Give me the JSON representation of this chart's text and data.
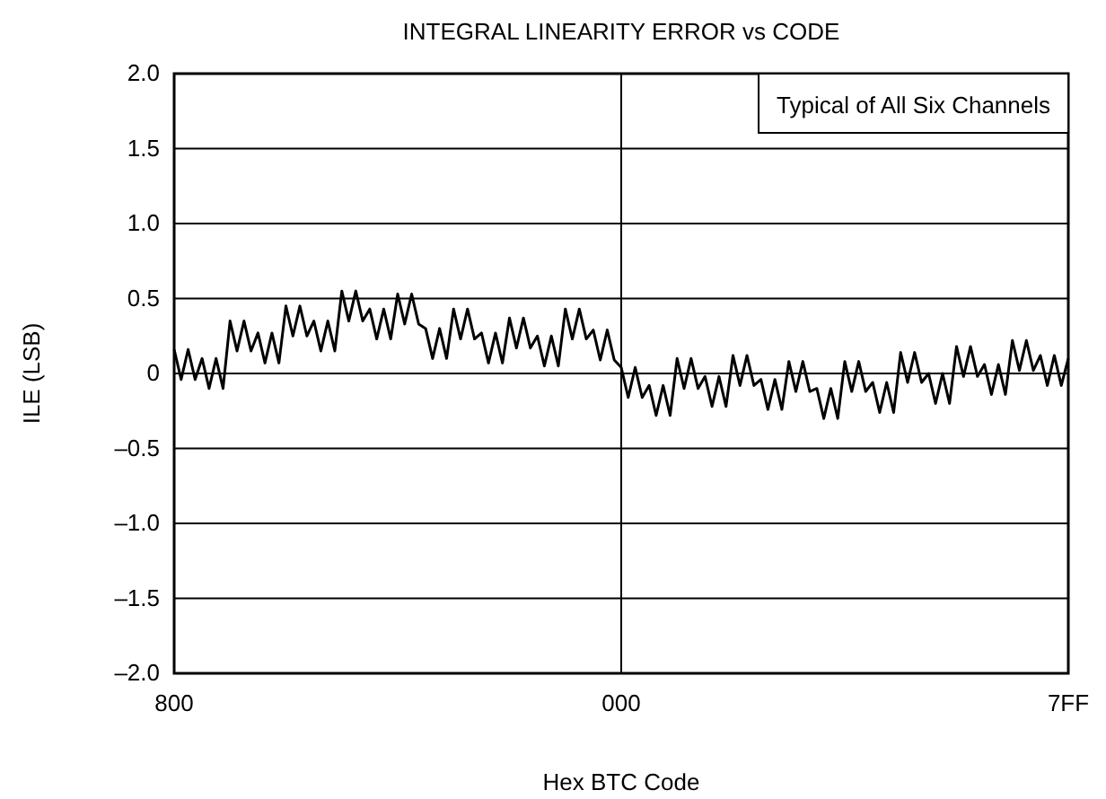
{
  "chart_data": {
    "type": "line",
    "title": "INTEGRAL LINEARITY ERROR vs CODE",
    "xlabel": "Hex BTC Code",
    "ylabel": "ILE (LSB)",
    "annotations": [
      "Typical of All Six Channels"
    ],
    "categories": [
      "800",
      null,
      null,
      null,
      null,
      null,
      null,
      null,
      null,
      null,
      null,
      null,
      null,
      null,
      null,
      null,
      null,
      null,
      null,
      null,
      null,
      null,
      null,
      null,
      null,
      null,
      null,
      null,
      null,
      null,
      null,
      null,
      null,
      null,
      null,
      null,
      null,
      null,
      null,
      null,
      null,
      null,
      null,
      null,
      null,
      null,
      null,
      null,
      null,
      null,
      null,
      null,
      null,
      null,
      null,
      null,
      null,
      null,
      null,
      null,
      null,
      null,
      null,
      null,
      "000",
      null,
      null,
      null,
      null,
      null,
      null,
      null,
      null,
      null,
      null,
      null,
      null,
      null,
      null,
      null,
      null,
      null,
      null,
      null,
      null,
      null,
      null,
      null,
      null,
      null,
      null,
      null,
      null,
      null,
      null,
      null,
      null,
      null,
      null,
      null,
      null,
      null,
      null,
      null,
      null,
      null,
      null,
      null,
      null,
      null,
      null,
      null,
      null,
      null,
      null,
      null,
      null,
      null,
      null,
      null,
      null,
      null,
      null,
      null,
      null,
      null,
      null,
      null,
      "7FF"
    ],
    "ylim": [
      -2,
      2
    ],
    "yticks": [
      {
        "value": -2,
        "label": "–2.0"
      },
      {
        "value": -1.5,
        "label": "–1.5"
      },
      {
        "value": -1,
        "label": "–1.0"
      },
      {
        "value": -0.5,
        "label": "–0.5"
      },
      0,
      0.5,
      {
        "value": 1,
        "label": "1.0"
      },
      1.5,
      {
        "value": 2,
        "label": "2.0"
      }
    ],
    "grid": true,
    "line_style": "solid",
    "marker": "none",
    "series": [
      {
        "color": "#000000",
        "values": [
          0.16,
          -0.04,
          0.16,
          -0.04,
          0.1,
          -0.1,
          0.1,
          -0.1,
          0.35,
          0.15,
          0.35,
          0.15,
          0.27,
          0.07,
          0.27,
          0.07,
          0.45,
          0.25,
          0.45,
          0.25,
          0.35,
          0.15,
          0.35,
          0.15,
          0.55,
          0.35,
          0.55,
          0.35,
          0.43,
          0.23,
          0.43,
          0.23,
          0.53,
          0.33,
          0.53,
          0.33,
          0.3,
          0.1,
          0.3,
          0.1,
          0.43,
          0.23,
          0.43,
          0.23,
          0.27,
          0.07,
          0.27,
          0.07,
          0.37,
          0.17,
          0.37,
          0.17,
          0.25,
          0.05,
          0.25,
          0.05,
          0.43,
          0.23,
          0.43,
          0.23,
          0.29,
          0.09,
          0.29,
          0.09,
          0.04,
          -0.16,
          0.04,
          -0.16,
          -0.08,
          -0.28,
          -0.08,
          -0.28,
          0.1,
          -0.1,
          0.1,
          -0.1,
          -0.02,
          -0.22,
          -0.02,
          -0.22,
          0.12,
          -0.08,
          0.12,
          -0.08,
          -0.04,
          -0.24,
          -0.04,
          -0.24,
          0.08,
          -0.12,
          0.08,
          -0.12,
          -0.1,
          -0.3,
          -0.1,
          -0.3,
          0.08,
          -0.12,
          0.08,
          -0.12,
          -0.06,
          -0.26,
          -0.06,
          -0.26,
          0.14,
          -0.06,
          0.14,
          -0.06,
          0,
          -0.2,
          0,
          -0.2,
          0.18,
          -0.02,
          0.18,
          -0.02,
          0.06,
          -0.14,
          0.06,
          -0.14,
          0.22,
          0.02,
          0.22,
          0.02,
          0.12,
          -0.08,
          0.12,
          -0.08,
          0.1
        ]
      }
    ]
  }
}
